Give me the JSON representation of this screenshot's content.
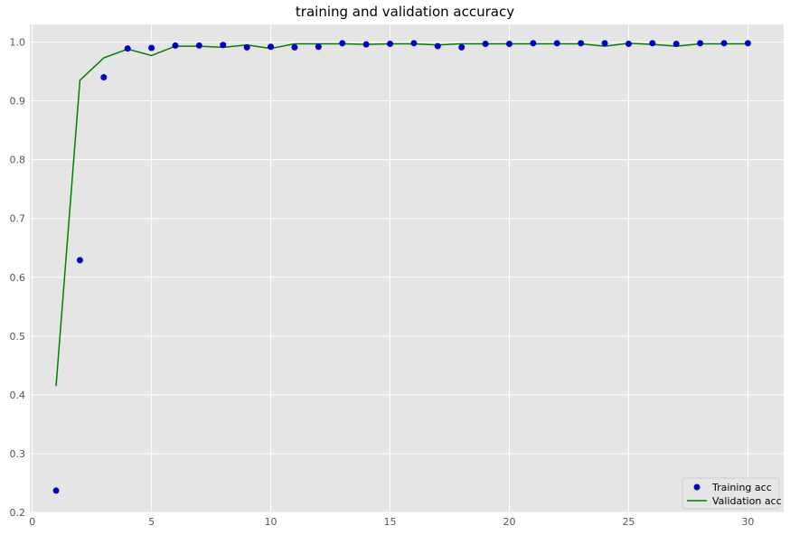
{
  "chart_data": {
    "type": "line",
    "title": "training and validation accuracy",
    "xlabel": "",
    "ylabel": "",
    "xlim": [
      -0.1,
      31.5
    ],
    "ylim": [
      0.2,
      1.03
    ],
    "xticks": [
      0,
      5,
      10,
      15,
      20,
      25,
      30
    ],
    "yticks": [
      0.2,
      0.3,
      0.4,
      0.5,
      0.6,
      0.7,
      0.8,
      0.9,
      1.0
    ],
    "grid": true,
    "legend_position": "bottom-right",
    "x": [
      1,
      2,
      3,
      4,
      5,
      6,
      7,
      8,
      9,
      10,
      11,
      12,
      13,
      14,
      15,
      16,
      17,
      18,
      19,
      20,
      21,
      22,
      23,
      24,
      25,
      26,
      27,
      28,
      29,
      30
    ],
    "series": [
      {
        "name": "Training acc",
        "style": "scatter",
        "color": "#0000cc",
        "values": [
          0.237,
          0.629,
          0.94,
          0.989,
          0.99,
          0.994,
          0.994,
          0.995,
          0.991,
          0.992,
          0.991,
          0.992,
          0.998,
          0.996,
          0.997,
          0.998,
          0.993,
          0.991,
          0.997,
          0.997,
          0.998,
          0.998,
          0.998,
          0.998,
          0.997,
          0.998,
          0.997,
          0.998,
          0.998,
          0.998
        ]
      },
      {
        "name": "Validation acc",
        "style": "line",
        "color": "#008000",
        "values": [
          0.415,
          0.935,
          0.973,
          0.988,
          0.977,
          0.993,
          0.993,
          0.991,
          0.995,
          0.989,
          0.997,
          0.997,
          0.997,
          0.996,
          0.997,
          0.997,
          0.995,
          0.997,
          0.997,
          0.997,
          0.997,
          0.997,
          0.997,
          0.993,
          0.998,
          0.996,
          0.993,
          0.997,
          0.997,
          0.997
        ]
      }
    ]
  }
}
